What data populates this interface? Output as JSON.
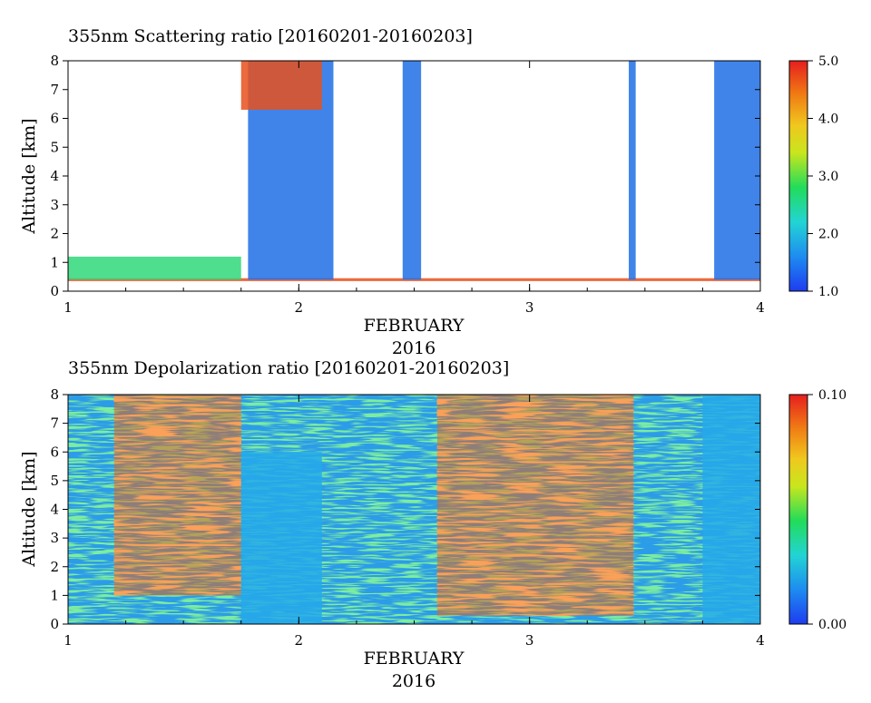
{
  "chart_data": [
    {
      "type": "heatmap",
      "title": "355nm Scattering ratio [20160201-20160203]",
      "ylabel": "Altitude [km]",
      "xlabel": "FEBRUARY",
      "xsublabel": "2016",
      "xlim": [
        1,
        4
      ],
      "ylim": [
        0,
        8
      ],
      "x_ticks": [
        "1",
        "2",
        "3",
        "4"
      ],
      "y_ticks": [
        "0",
        "1",
        "2",
        "3",
        "4",
        "5",
        "6",
        "7",
        "8"
      ],
      "colorbar": {
        "min": 1.0,
        "max": 5.0,
        "tick_labels": [
          "1.0",
          "2.0",
          "3.0",
          "4.0",
          "5.0"
        ]
      },
      "features": [
        {
          "x": [
            1.0,
            4.0
          ],
          "y": [
            0.35,
            0.45
          ],
          "level": "high"
        },
        {
          "x": [
            1.0,
            1.75
          ],
          "y": [
            0.4,
            1.2
          ],
          "level": "moderate"
        },
        {
          "x": [
            1.78,
            2.15
          ],
          "y": [
            0.4,
            8.0
          ],
          "level": "low-column"
        },
        {
          "x": [
            1.75,
            2.1
          ],
          "y": [
            6.3,
            8.0
          ],
          "level": "high"
        },
        {
          "x": [
            2.45,
            2.53
          ],
          "y": [
            0.4,
            8.0
          ],
          "level": "low-column"
        },
        {
          "x": [
            3.43,
            3.46
          ],
          "y": [
            0.4,
            8.0
          ],
          "level": "low-column"
        },
        {
          "x": [
            3.8,
            4.0
          ],
          "y": [
            0.4,
            8.0
          ],
          "level": "low-column"
        }
      ]
    },
    {
      "type": "heatmap",
      "title": "355nm Depolarization ratio [20160201-20160203]",
      "ylabel": "Altitude [km]",
      "xlabel": "FEBRUARY",
      "xsublabel": "2016",
      "xlim": [
        1,
        4
      ],
      "ylim": [
        0,
        8
      ],
      "x_ticks": [
        "1",
        "2",
        "3",
        "4"
      ],
      "y_ticks": [
        "0",
        "1",
        "2",
        "3",
        "4",
        "5",
        "6",
        "7",
        "8"
      ],
      "colorbar": {
        "min": 0.0,
        "max": 0.1,
        "tick_labels": [
          "0.00",
          "0.10"
        ]
      },
      "features": [
        {
          "x": [
            1.2,
            1.75
          ],
          "y": [
            1.0,
            8.0
          ],
          "level": "high-noisy"
        },
        {
          "x": [
            1.75,
            2.1
          ],
          "y": [
            0.0,
            6.0
          ],
          "level": "low"
        },
        {
          "x": [
            2.6,
            3.45
          ],
          "y": [
            0.3,
            8.0
          ],
          "level": "high-noisy"
        },
        {
          "x": [
            3.75,
            4.0
          ],
          "y": [
            0.0,
            8.0
          ],
          "level": "low"
        }
      ]
    }
  ]
}
